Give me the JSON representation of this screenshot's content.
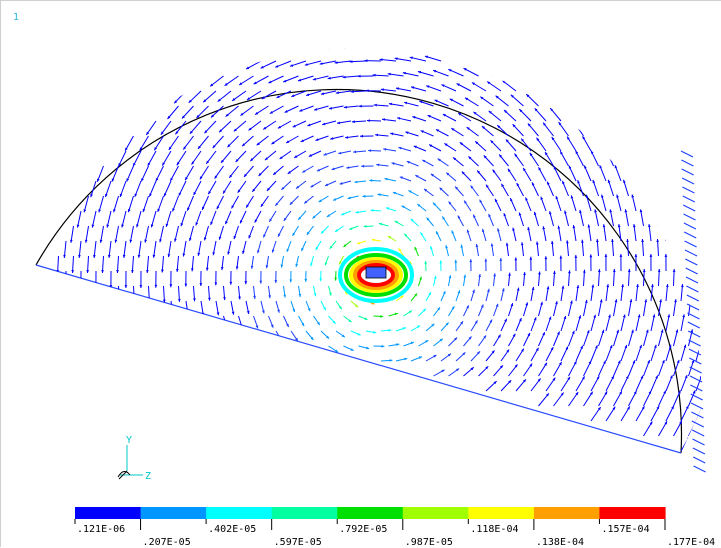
{
  "window_number": "1",
  "triad": {
    "y_label": "Y",
    "z_label": "Z"
  },
  "contour_legend": {
    "colors": [
      "#0000ff",
      "#0096ff",
      "#00ffff",
      "#00ffa0",
      "#00e000",
      "#a0ff00",
      "#ffff00",
      "#ffa000",
      "#ff0000"
    ],
    "labels_top": [
      ".121E-06",
      ".402E-05",
      ".792E-05",
      ".118E-04",
      ".157E-04"
    ],
    "labels_bottom": [
      ".207E-05",
      ".597E-05",
      ".987E-05",
      ".138E-04",
      ".177E-04"
    ]
  },
  "vector_field": {
    "vortex_colors": [
      "#0000ff",
      "#0096ff",
      "#00ffff",
      "#00ffa0",
      "#00e000",
      "#a0ff00",
      "#ffff00",
      "#ffa000",
      "#ff0000"
    ]
  }
}
